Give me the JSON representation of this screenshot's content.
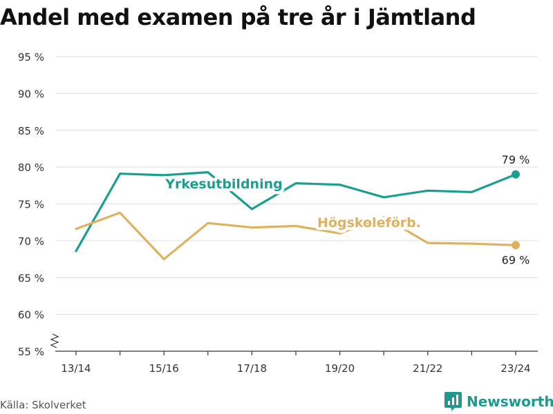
{
  "title": "Andel med examen på tre år i Jämtland",
  "source": "Källa: Skolverket",
  "brand": "Newsworthy",
  "chart_data": {
    "type": "line",
    "x": [
      "13/14",
      "14/15",
      "15/16",
      "16/17",
      "17/18",
      "18/19",
      "19/20",
      "20/21",
      "21/22",
      "22/23",
      "23/24"
    ],
    "x_tick_labels": [
      "13/14",
      "15/16",
      "17/18",
      "19/20",
      "21/22",
      "23/24"
    ],
    "y_ticks": [
      55,
      60,
      65,
      70,
      75,
      80,
      85,
      90,
      95
    ],
    "y_tick_labels": [
      "55 %",
      "60 %",
      "65 %",
      "70 %",
      "75 %",
      "80 %",
      "85 %",
      "90 %",
      "95 %"
    ],
    "ylim": [
      55,
      95
    ],
    "grid": true,
    "series": [
      {
        "name": "Yrkesutbildning",
        "color": "#1a9f8f",
        "values": [
          68.6,
          79.1,
          78.9,
          79.3,
          74.3,
          77.8,
          77.6,
          75.9,
          76.8,
          76.6,
          79.0
        ],
        "end_label": "79 %"
      },
      {
        "name": "Högskoleförb.",
        "color": "#ddb25f",
        "values": [
          71.6,
          73.8,
          67.5,
          72.4,
          71.8,
          72.0,
          71.0,
          73.2,
          69.7,
          69.6,
          69.4
        ],
        "end_label": "69 %"
      }
    ]
  }
}
